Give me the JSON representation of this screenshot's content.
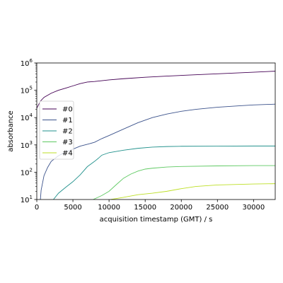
{
  "chart_data": {
    "type": "line",
    "xlabel": "acquisition timestamp (GMT) / s",
    "ylabel": "absorbance",
    "xlim": [
      0,
      33000
    ],
    "ylim": [
      10,
      1000000
    ],
    "yscale": "log",
    "x_ticks": [
      0,
      5000,
      10000,
      15000,
      20000,
      25000,
      30000
    ],
    "x_tick_labels": [
      "0",
      "5000",
      "10000",
      "15000",
      "20000",
      "25000",
      "30000"
    ],
    "y_ticks": [
      10,
      100,
      1000,
      10000,
      100000,
      1000000
    ],
    "y_tick_labels": [
      {
        "base": "10",
        "exp": "1"
      },
      {
        "base": "10",
        "exp": "2"
      },
      {
        "base": "10",
        "exp": "3"
      },
      {
        "base": "10",
        "exp": "4"
      },
      {
        "base": "10",
        "exp": "5"
      },
      {
        "base": "10",
        "exp": "6"
      }
    ],
    "grid": false,
    "legend_position": "center-left",
    "series": [
      {
        "name": "#0",
        "color": "#440154",
        "points": [
          [
            0,
            22000
          ],
          [
            500,
            40000
          ],
          [
            1000,
            55000
          ],
          [
            2000,
            78000
          ],
          [
            3000,
            100000
          ],
          [
            4000,
            120000
          ],
          [
            5000,
            145000
          ],
          [
            6000,
            175000
          ],
          [
            7000,
            200000
          ],
          [
            8000,
            210000
          ],
          [
            9000,
            225000
          ],
          [
            10000,
            240000
          ],
          [
            12000,
            265000
          ],
          [
            15000,
            300000
          ],
          [
            18000,
            330000
          ],
          [
            20000,
            350000
          ],
          [
            25000,
            400000
          ],
          [
            30000,
            460000
          ],
          [
            33000,
            500000
          ]
        ]
      },
      {
        "name": "#1",
        "color": "#3b528b",
        "points": [
          [
            500,
            10
          ],
          [
            600,
            22
          ],
          [
            1000,
            75
          ],
          [
            1500,
            150
          ],
          [
            2000,
            250
          ],
          [
            3000,
            400
          ],
          [
            4000,
            550
          ],
          [
            5000,
            700
          ],
          [
            6000,
            900
          ],
          [
            7000,
            1050
          ],
          [
            8000,
            1250
          ],
          [
            9000,
            1700
          ],
          [
            10000,
            2200
          ],
          [
            12000,
            3800
          ],
          [
            14000,
            6500
          ],
          [
            16000,
            10000
          ],
          [
            18000,
            13500
          ],
          [
            20000,
            17000
          ],
          [
            22000,
            20000
          ],
          [
            25000,
            24000
          ],
          [
            28000,
            27000
          ],
          [
            30000,
            29000
          ],
          [
            33000,
            31000
          ]
        ]
      },
      {
        "name": "#2",
        "color": "#21918c",
        "points": [
          [
            2300,
            10
          ],
          [
            3000,
            17
          ],
          [
            4000,
            28
          ],
          [
            5000,
            45
          ],
          [
            6000,
            80
          ],
          [
            7000,
            160
          ],
          [
            8000,
            250
          ],
          [
            8500,
            320
          ],
          [
            9000,
            420
          ],
          [
            10000,
            520
          ],
          [
            12000,
            640
          ],
          [
            14000,
            750
          ],
          [
            16000,
            830
          ],
          [
            18000,
            870
          ],
          [
            20000,
            890
          ],
          [
            25000,
            900
          ],
          [
            30000,
            910
          ],
          [
            33000,
            910
          ]
        ]
      },
      {
        "name": "#3",
        "color": "#5ec962",
        "points": [
          [
            7800,
            10
          ],
          [
            9000,
            14
          ],
          [
            10000,
            20
          ],
          [
            11000,
            35
          ],
          [
            12000,
            60
          ],
          [
            13000,
            85
          ],
          [
            14000,
            110
          ],
          [
            15000,
            130
          ],
          [
            16000,
            140
          ],
          [
            18000,
            155
          ],
          [
            20000,
            162
          ],
          [
            25000,
            170
          ],
          [
            30000,
            175
          ],
          [
            33000,
            175
          ]
        ]
      },
      {
        "name": "#4",
        "color": "#bddf26",
        "points": [
          [
            10200,
            10
          ],
          [
            12000,
            12
          ],
          [
            14000,
            15
          ],
          [
            16000,
            17
          ],
          [
            18000,
            20
          ],
          [
            20000,
            25
          ],
          [
            22000,
            30
          ],
          [
            25000,
            34
          ],
          [
            30000,
            37
          ],
          [
            33000,
            38
          ]
        ]
      }
    ]
  }
}
